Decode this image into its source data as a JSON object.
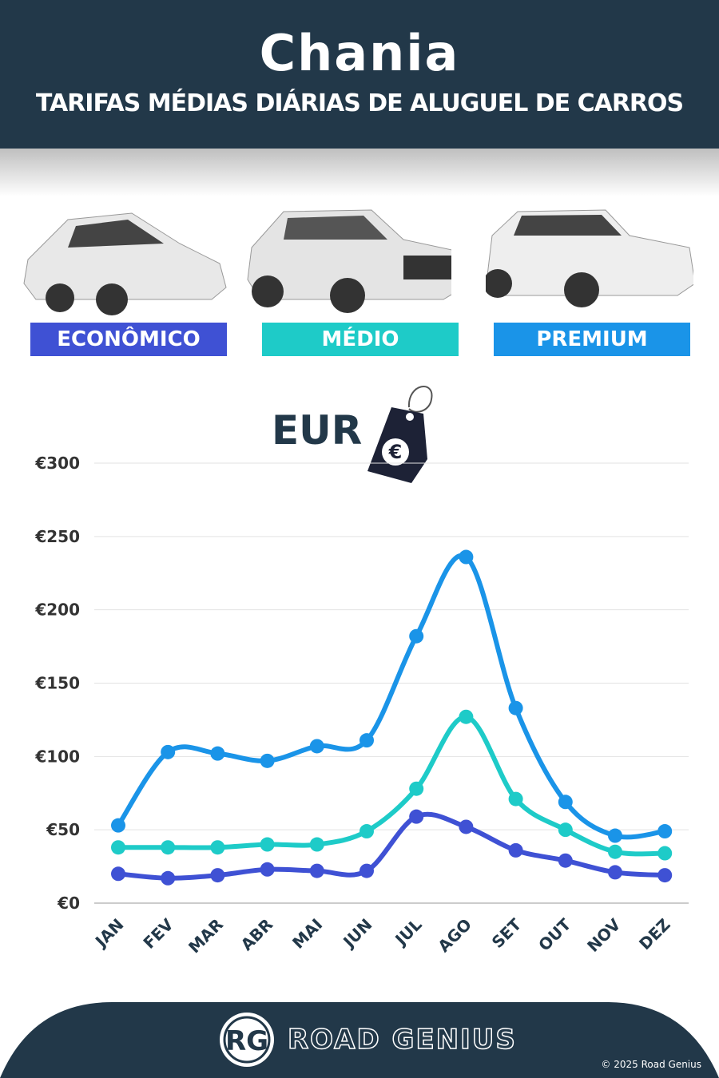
{
  "header": {
    "title": "Chania",
    "subtitle": "TARIFAS MÉDIAS DIÁRIAS DE ALUGUEL DE CARROS"
  },
  "categories": [
    {
      "label": "ECONÔMICO",
      "color": "#3f51d4"
    },
    {
      "label": "MÉDIO",
      "color": "#1ecbc8"
    },
    {
      "label": "PREMIUM",
      "color": "#1a94e8"
    }
  ],
  "currency": {
    "label": "EUR",
    "symbol": "€",
    "icon": "price-tag-icon"
  },
  "chart_data": {
    "type": "line",
    "title": "",
    "xlabel": "",
    "ylabel": "",
    "ylim": [
      0,
      300
    ],
    "grid": true,
    "yticks": [
      "€0",
      "€50",
      "€100",
      "€150",
      "€200",
      "€250",
      "€300"
    ],
    "categories": [
      "JAN",
      "FEV",
      "MAR",
      "ABR",
      "MAI",
      "JUN",
      "JUL",
      "AGO",
      "SET",
      "OUT",
      "NOV",
      "DEZ"
    ],
    "series": [
      {
        "name": "ECONÔMICO",
        "color": "#3f51d4",
        "values": [
          20,
          17,
          19,
          23,
          22,
          22,
          59,
          52,
          36,
          29,
          21,
          19
        ]
      },
      {
        "name": "MÉDIO",
        "color": "#1ecbc8",
        "values": [
          38,
          38,
          38,
          40,
          40,
          49,
          78,
          127,
          71,
          50,
          35,
          34
        ]
      },
      {
        "name": "PREMIUM",
        "color": "#1a94e8",
        "values": [
          53,
          103,
          102,
          97,
          107,
          111,
          182,
          236,
          133,
          69,
          46,
          49
        ]
      }
    ]
  },
  "footer": {
    "logo": "RG",
    "brand": "ROAD GENIUS",
    "copyright": "© 2025 Road Genius"
  }
}
